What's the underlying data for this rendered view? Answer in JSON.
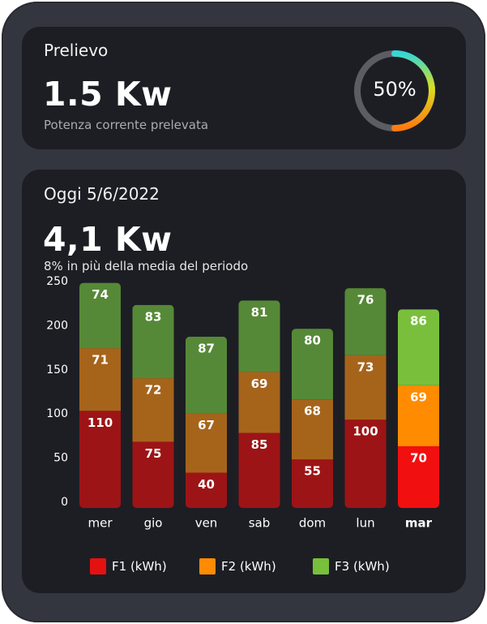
{
  "prelievo": {
    "title": "Prelievo",
    "value": "1.5 Kw",
    "subtitle": "Potenza corrente prelevata",
    "gauge_label": "50%",
    "gauge_value": 0.5
  },
  "oggi": {
    "title": "Oggi  5/6/2022",
    "value": "4,1 Kw",
    "subtitle": "8% in più della media del periodo"
  },
  "legend": [
    {
      "label": "F1 (kWh)",
      "color": "#e41111"
    },
    {
      "label": "F2 (kWh)",
      "color": "#ff8b00"
    },
    {
      "label": "F3 (kWh)",
      "color": "#78bf3a"
    }
  ],
  "chart_data": {
    "type": "bar",
    "stacked": true,
    "categories": [
      "mer",
      "gio",
      "ven",
      "sab",
      "dom",
      "lun",
      "mar"
    ],
    "highlight_category": "mar",
    "series": [
      {
        "name": "F1 (kWh)",
        "values": [
          110,
          75,
          40,
          85,
          55,
          100,
          70
        ],
        "color": "#9d1416",
        "highlight_color": "#f20f10"
      },
      {
        "name": "F2 (kWh)",
        "values": [
          71,
          72,
          67,
          69,
          68,
          73,
          69
        ],
        "color": "#a6641b",
        "highlight_color": "#ff8b00"
      },
      {
        "name": "F3 (kWh)",
        "values": [
          74,
          83,
          87,
          81,
          80,
          76,
          86
        ],
        "color": "#568937",
        "highlight_color": "#79bf3c"
      }
    ],
    "yticks": [
      0,
      50,
      100,
      150,
      200,
      250
    ],
    "ylim": [
      0,
      250
    ],
    "grid": false
  }
}
